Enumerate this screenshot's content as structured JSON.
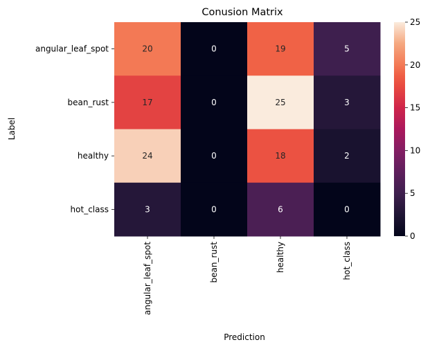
{
  "chart_data": {
    "type": "heatmap",
    "title": "Conusion Matrix",
    "xlabel": "Prediction",
    "ylabel": "Label",
    "x_categories": [
      "angular_leaf_spot",
      "bean_rust",
      "healthy",
      "hot_class"
    ],
    "y_categories": [
      "angular_leaf_spot",
      "bean_rust",
      "healthy",
      "hot_class"
    ],
    "values": [
      [
        20,
        0,
        19,
        5
      ],
      [
        17,
        0,
        25,
        3
      ],
      [
        24,
        0,
        18,
        2
      ],
      [
        3,
        0,
        6,
        0
      ]
    ],
    "annotated": true,
    "colormap": "rocket",
    "colorbar": {
      "range": [
        0,
        25
      ],
      "ticks": [
        0,
        5,
        10,
        15,
        20,
        25
      ],
      "position": "right"
    },
    "grid": false
  }
}
